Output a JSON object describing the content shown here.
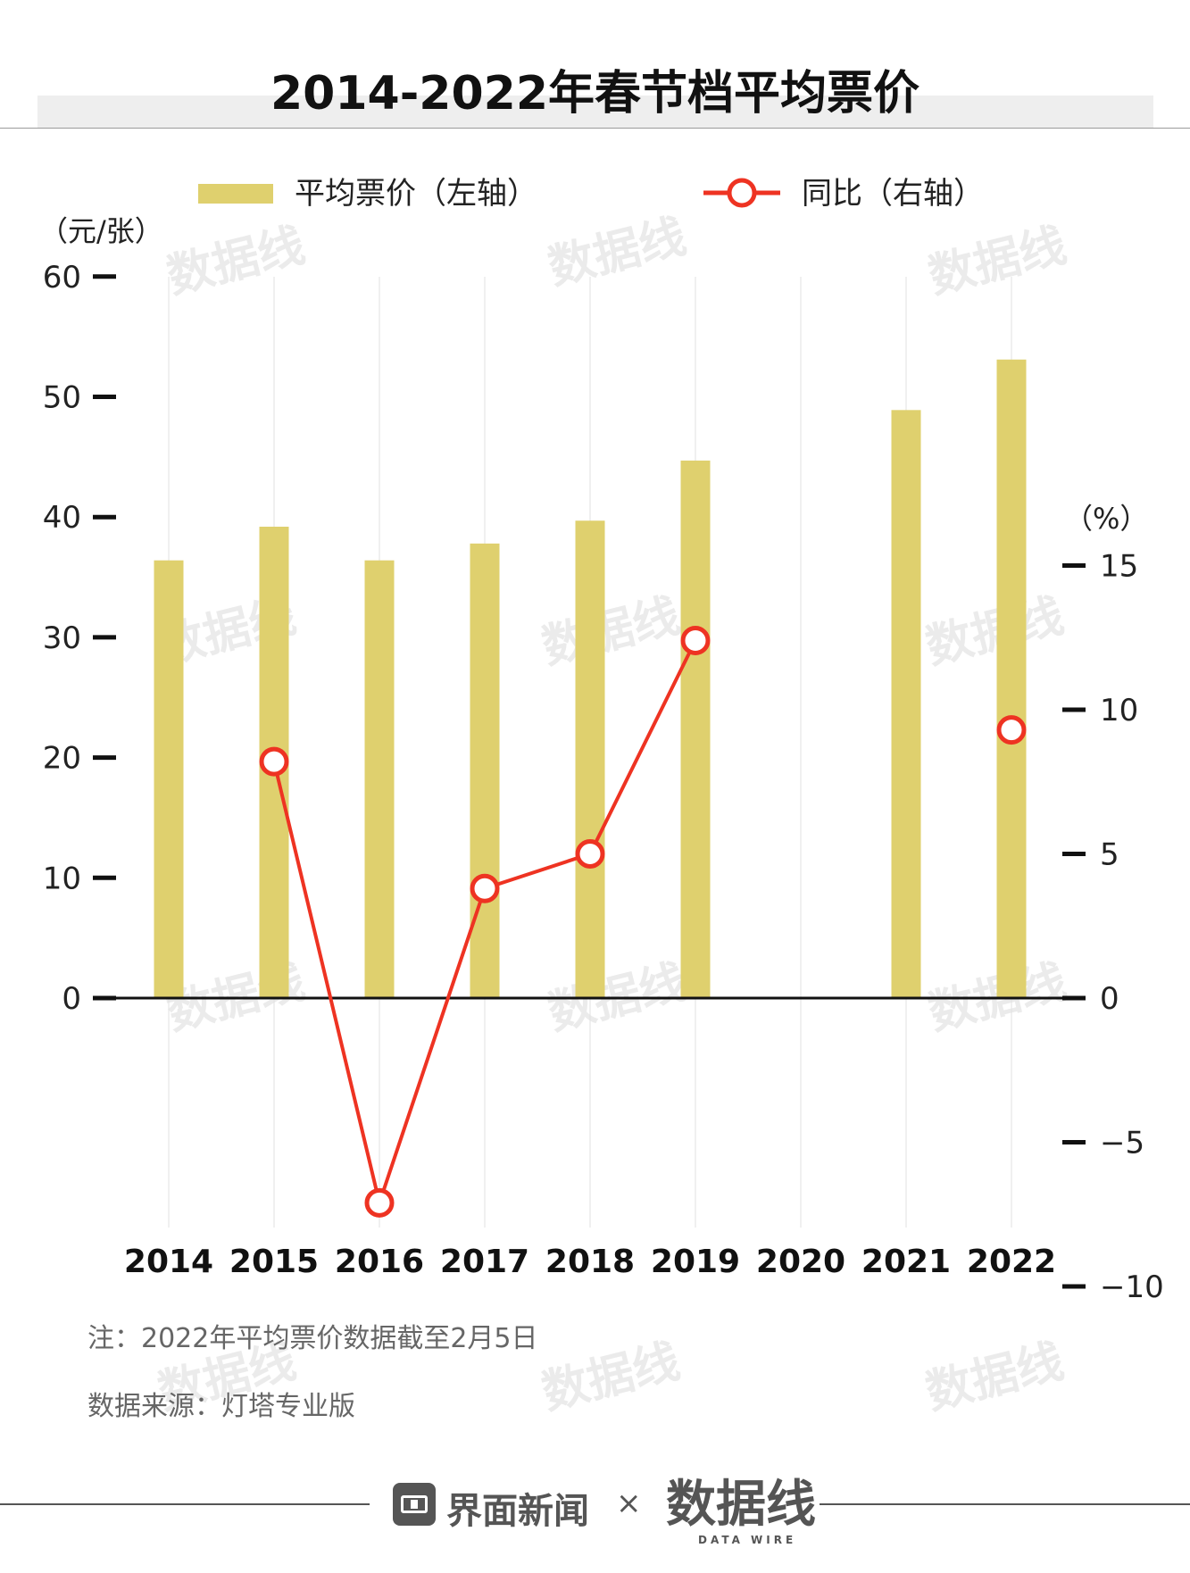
{
  "title": "2014-2022年春节档平均票价",
  "chart_data": {
    "type": "bar+line",
    "categories": [
      "2014",
      "2015",
      "2016",
      "2017",
      "2018",
      "2019",
      "2020",
      "2021",
      "2022"
    ],
    "series": [
      {
        "name": "平均票价（左轴）",
        "axis": "left",
        "type": "bar",
        "values": [
          36.4,
          39.2,
          36.4,
          37.8,
          39.7,
          44.7,
          null,
          48.9,
          53.1
        ]
      },
      {
        "name": "同比（右轴）",
        "axis": "right",
        "type": "line",
        "values": [
          null,
          8.2,
          -7.1,
          3.8,
          5.0,
          12.4,
          null,
          null,
          9.3
        ]
      }
    ],
    "left_axis": {
      "unit": "（元/张）",
      "ylim": [
        0,
        60
      ],
      "ticks": [
        "0",
        "10",
        "20",
        "30",
        "40",
        "50",
        "60"
      ]
    },
    "right_axis": {
      "unit": "（%）",
      "ylim": [
        -10,
        15
      ],
      "ticks": [
        "−10",
        "−5",
        "0",
        "5",
        "10",
        "15"
      ]
    },
    "colors": {
      "bar": "#dfd06e",
      "line": "#ee3322",
      "marker_fill": "#ffffff"
    },
    "legend": {
      "placement": "top",
      "bar_label": "平均票价（左轴）",
      "line_label": "同比（右轴）"
    }
  },
  "notes": {
    "note": "注：2022年平均票价数据截至2月5日",
    "source": "数据来源：灯塔专业版"
  },
  "footer": {
    "brand_name": "界面新闻",
    "separator": "×",
    "logo_text": "数据线",
    "logo_sub": "DATA WIRE"
  },
  "watermark": "数据线"
}
